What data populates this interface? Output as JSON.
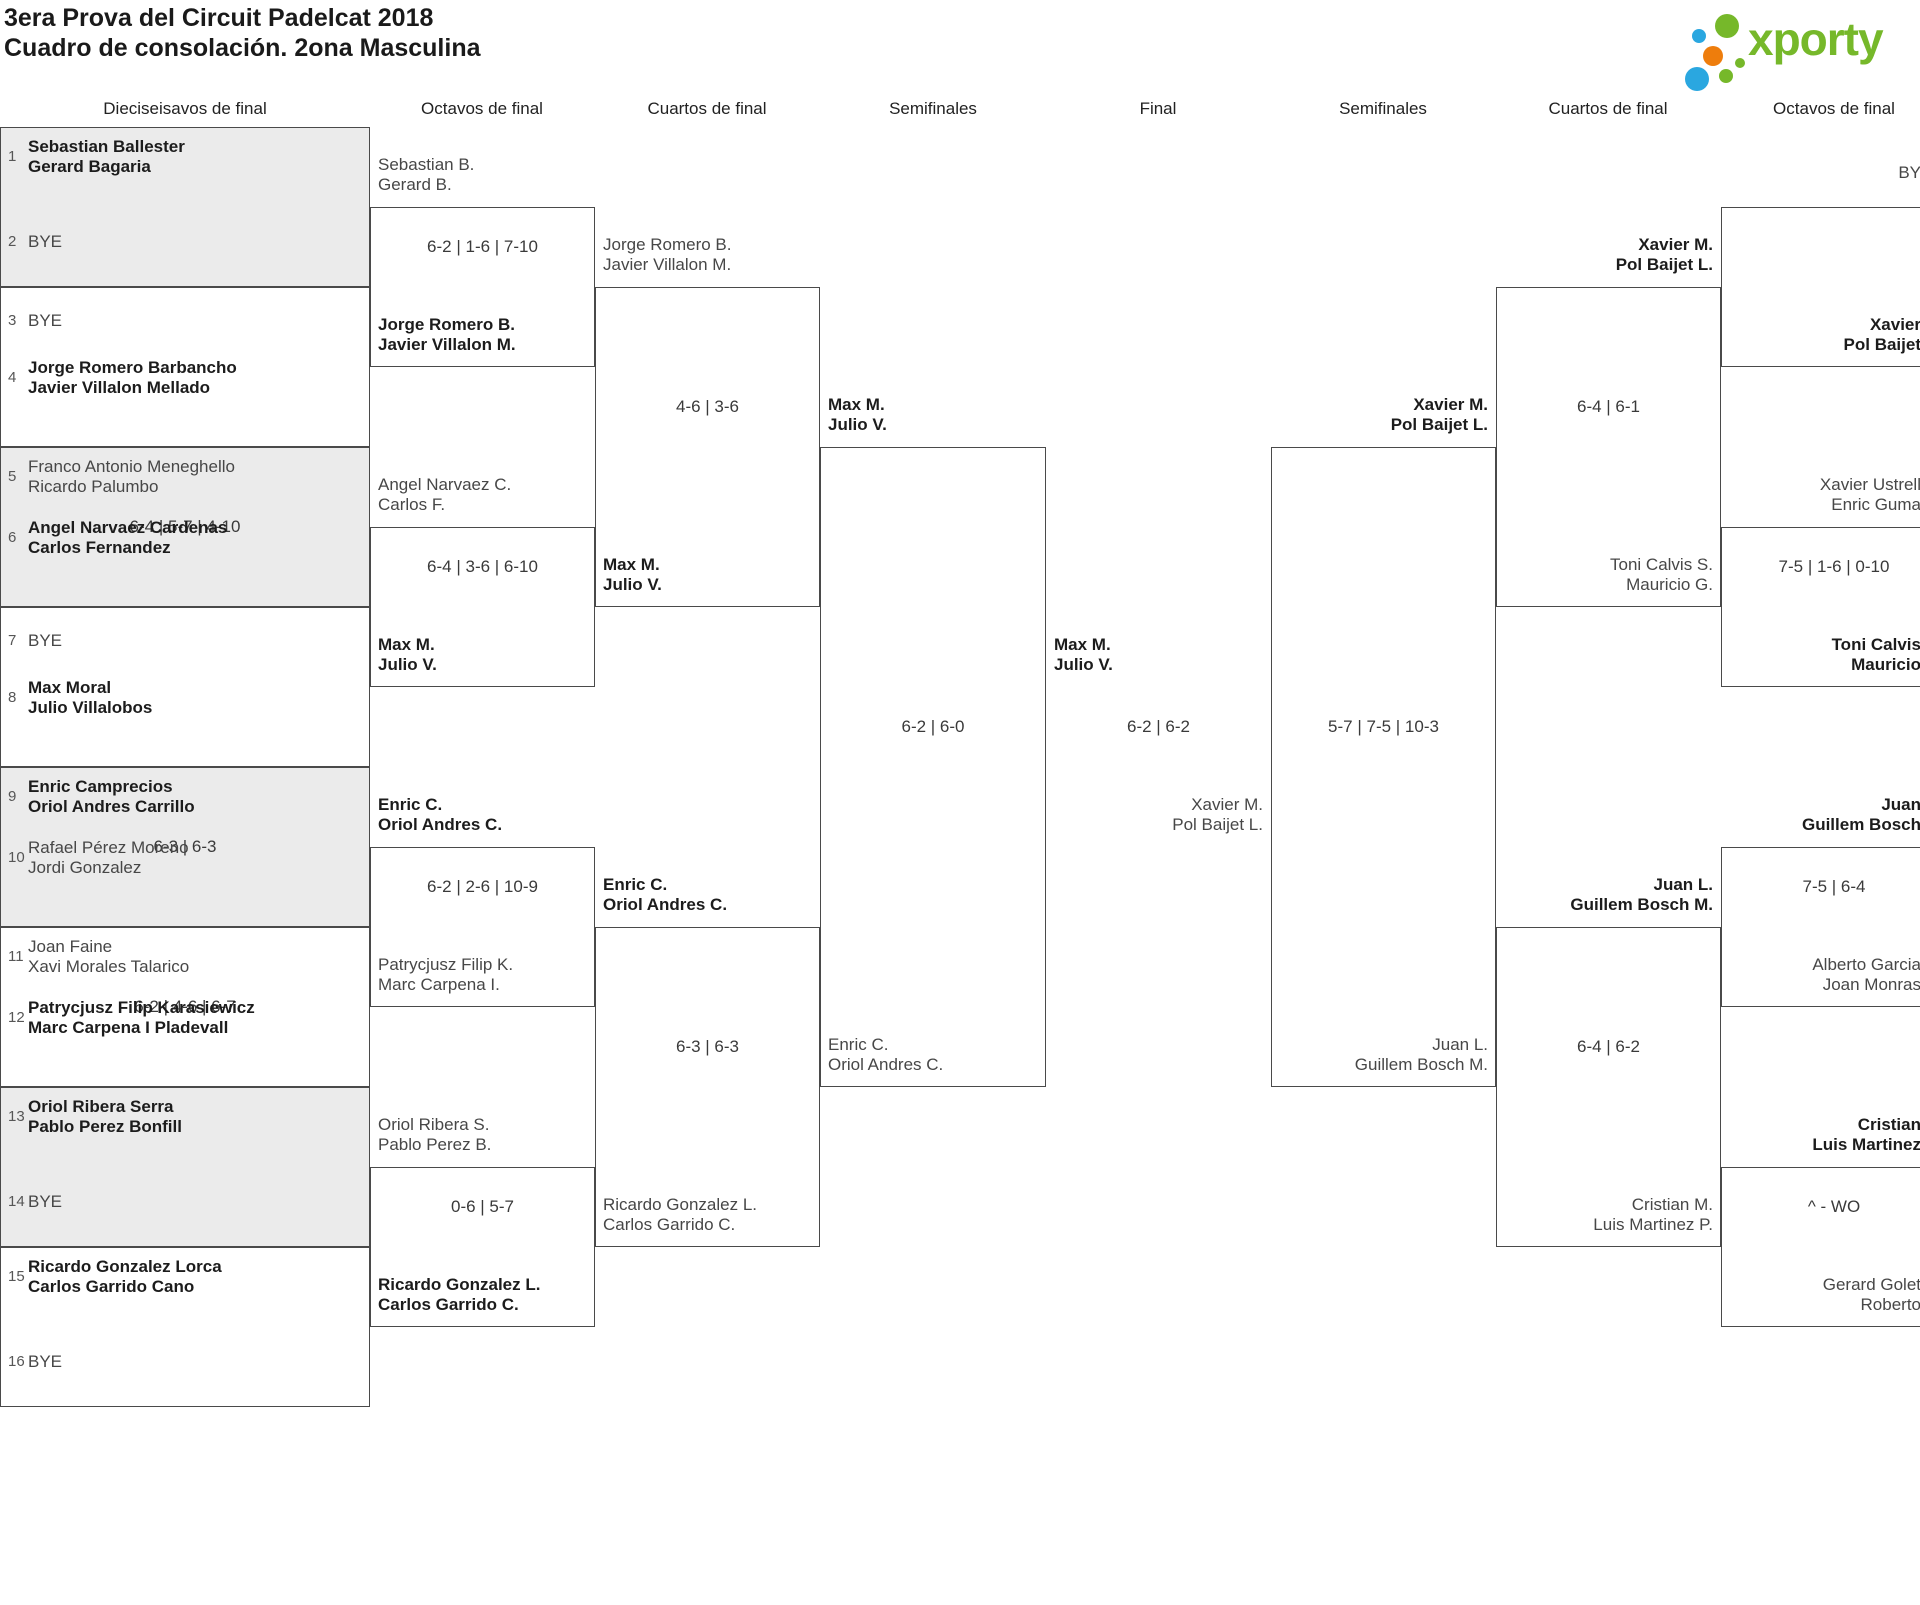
{
  "title": {
    "line1": "3era Prova del Circuit Padelcat 2018",
    "line2": "Cuadro de consolación. 2ona Masculina"
  },
  "logo": {
    "text": "xporty"
  },
  "colors": {
    "logo_green": "#76b82a",
    "logo_blue": "#2aa7e0",
    "logo_orange": "#ee7d0c",
    "box_alt_fill": "#ebebeb",
    "box_border": "#4a4a4a"
  },
  "round_headers": [
    "Dieciseisavos de final",
    "Octavos de final",
    "Cuartos de final",
    "Semifinales",
    "Final",
    "Semifinales",
    "Cuartos de final",
    "Octavos de final"
  ],
  "bracket": {
    "dieciseisavos": [
      {
        "team1": {
          "seed": "1",
          "lines": [
            "Sebastian Ballester",
            "Gerard Bagaria"
          ],
          "winner": true
        },
        "score": "",
        "team2": {
          "seed": "2",
          "lines": [
            "BYE"
          ],
          "winner": false
        }
      },
      {
        "team1": {
          "seed": "3",
          "lines": [
            "BYE"
          ],
          "winner": false
        },
        "score": "",
        "team2": {
          "seed": "4",
          "lines": [
            "Jorge Romero Barbancho",
            "Javier Villalon Mellado"
          ],
          "winner": true
        }
      },
      {
        "team1": {
          "seed": "5",
          "lines": [
            "Franco Antonio Meneghello",
            "Ricardo Palumbo"
          ],
          "winner": false
        },
        "score": "6-4 | 5-7 | 4-10",
        "team2": {
          "seed": "6",
          "lines": [
            "Angel Narvaez Cardenas",
            "Carlos Fernandez"
          ],
          "winner": true
        }
      },
      {
        "team1": {
          "seed": "7",
          "lines": [
            "BYE"
          ],
          "winner": false
        },
        "score": "",
        "team2": {
          "seed": "8",
          "lines": [
            "Max Moral",
            "Julio Villalobos"
          ],
          "winner": true
        }
      },
      {
        "team1": {
          "seed": "9",
          "lines": [
            "Enric Camprecios",
            "Oriol Andres Carrillo"
          ],
          "winner": true
        },
        "score": "6-3 | 6-3",
        "team2": {
          "seed": "10",
          "lines": [
            "Rafael Pérez Moreno",
            "Jordi Gonzalez"
          ],
          "winner": false
        }
      },
      {
        "team1": {
          "seed": "11",
          "lines": [
            "Joan Faine",
            "Xavi Morales Talarico"
          ],
          "winner": false
        },
        "score": "6-2 | 4-6 | 6-7",
        "team2": {
          "seed": "12",
          "lines": [
            "Patrycjusz Filip Karasiewicz",
            "Marc Carpena I Pladevall"
          ],
          "winner": true
        }
      },
      {
        "team1": {
          "seed": "13",
          "lines": [
            "Oriol Ribera Serra",
            "Pablo Perez Bonfill"
          ],
          "winner": true
        },
        "score": "",
        "team2": {
          "seed": "14",
          "lines": [
            "BYE"
          ],
          "winner": false
        }
      },
      {
        "team1": {
          "seed": "15",
          "lines": [
            "Ricardo Gonzalez Lorca",
            "Carlos Garrido Cano"
          ],
          "winner": true
        },
        "score": "",
        "team2": {
          "seed": "16",
          "lines": [
            "BYE"
          ],
          "winner": false
        }
      }
    ],
    "octavos_left": [
      {
        "team1": {
          "lines": [
            "Sebastian B.",
            "Gerard B."
          ],
          "winner": false
        },
        "score": "6-2 | 1-6 | 7-10",
        "team2": {
          "lines": [
            "Jorge Romero B.",
            "Javier Villalon M."
          ],
          "winner": true
        }
      },
      {
        "team1": {
          "lines": [
            "Angel Narvaez C.",
            "Carlos F."
          ],
          "winner": false
        },
        "score": "6-4 | 3-6 | 6-10",
        "team2": {
          "lines": [
            "Max M.",
            "Julio V."
          ],
          "winner": true
        }
      },
      {
        "team1": {
          "lines": [
            "Enric C.",
            "Oriol Andres C."
          ],
          "winner": true
        },
        "score": "6-2 | 2-6 | 10-9",
        "team2": {
          "lines": [
            "Patrycjusz Filip K.",
            "Marc Carpena I."
          ],
          "winner": false
        }
      },
      {
        "team1": {
          "lines": [
            "Oriol Ribera S.",
            "Pablo Perez B."
          ],
          "winner": false
        },
        "score": "0-6 | 5-7",
        "team2": {
          "lines": [
            "Ricardo Gonzalez L.",
            "Carlos Garrido C."
          ],
          "winner": true
        }
      }
    ],
    "cuartos_left": [
      {
        "team1": {
          "lines": [
            "Jorge Romero B.",
            "Javier Villalon M."
          ],
          "winner": false
        },
        "score": "4-6 | 3-6",
        "team2": {
          "lines": [
            "Max M.",
            "Julio V."
          ],
          "winner": true
        }
      },
      {
        "team1": {
          "lines": [
            "Enric C.",
            "Oriol Andres C."
          ],
          "winner": true
        },
        "score": "6-3 | 6-3",
        "team2": {
          "lines": [
            "Ricardo Gonzalez L.",
            "Carlos Garrido C."
          ],
          "winner": false
        }
      }
    ],
    "semifinales_left": [
      {
        "team1": {
          "lines": [
            "Max M.",
            "Julio V."
          ],
          "winner": true
        },
        "score": "6-2 | 6-0",
        "team2": {
          "lines": [
            "Enric C.",
            "Oriol Andres C."
          ],
          "winner": false
        }
      }
    ],
    "final": {
      "team1": {
        "lines": [
          "Max M.",
          "Julio V."
        ],
        "winner": true
      },
      "score": "6-2 | 6-2",
      "team2": {
        "lines": [
          "Xavier M.",
          "Pol Baijet L."
        ],
        "winner": false
      }
    },
    "semifinales_right": [
      {
        "team1": {
          "lines": [
            "Xavier M.",
            "Pol Baijet L."
          ],
          "winner": true
        },
        "score": "5-7 | 7-5 | 10-3",
        "team2": {
          "lines": [
            "Juan L.",
            "Guillem Bosch M."
          ],
          "winner": false
        }
      }
    ],
    "cuartos_right": [
      {
        "team1": {
          "lines": [
            "Xavier M.",
            "Pol Baijet L."
          ],
          "winner": true
        },
        "score": "6-4 | 6-1",
        "team2": {
          "lines": [
            "Toni Calvis S.",
            "Mauricio G."
          ],
          "winner": false
        }
      },
      {
        "team1": {
          "lines": [
            "Juan L.",
            "Guillem Bosch M."
          ],
          "winner": true
        },
        "score": "6-4 | 6-2",
        "team2": {
          "lines": [
            "Cristian M.",
            "Luis Martinez P."
          ],
          "winner": false
        }
      }
    ],
    "octavos_right": [
      {
        "team1": {
          "lines": [
            "BY"
          ],
          "winner": false
        },
        "score": "",
        "team2": {
          "lines": [
            "Xavier",
            "Pol Baijet"
          ],
          "winner": true
        }
      },
      {
        "team1": {
          "lines": [
            "Xavier Ustrell",
            "Enric Guma"
          ],
          "winner": false
        },
        "score": "7-5 | 1-6 | 0-10",
        "team2": {
          "lines": [
            "Toni Calvis",
            "Mauricio"
          ],
          "winner": true
        }
      },
      {
        "team1": {
          "lines": [
            "Juan",
            "Guillem Bosch"
          ],
          "winner": true
        },
        "score": "7-5 | 6-4",
        "team2": {
          "lines": [
            "Alberto Garcia",
            "Joan Monras"
          ],
          "winner": false
        }
      },
      {
        "team1": {
          "lines": [
            "Cristian",
            "Luis Martinez"
          ],
          "winner": true
        },
        "score": "^ - WO",
        "team2": {
          "lines": [
            "Gerard Golet",
            "Roberto"
          ],
          "winner": false
        }
      }
    ]
  }
}
